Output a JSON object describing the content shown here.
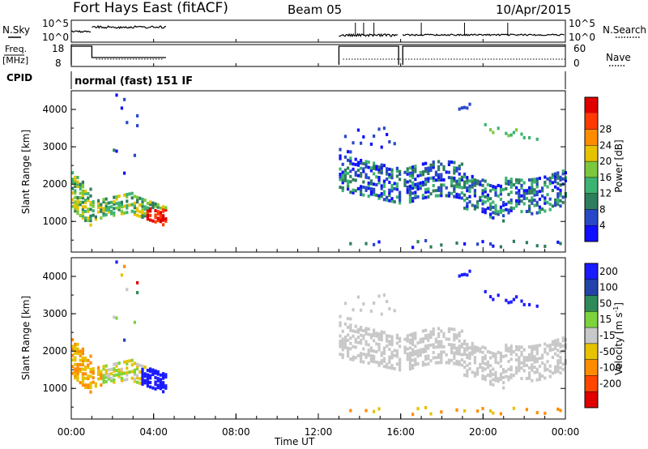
{
  "header": {
    "title": "Fort Hays East (fitACF)",
    "beam": "Beam 05",
    "date": "10/Apr/2015"
  },
  "ancillary": {
    "nsky_label": "N.Sky",
    "nsearch_label": "N.Search",
    "freq_label_line1": "Freq.",
    "freq_label_line2": "[MHz]",
    "nave_label": "Nave",
    "cpid_label": "CPID",
    "cpid_text": "normal (fast) 151 IF",
    "noise_ticks_left": [
      "10^5",
      "10^0"
    ],
    "noise_ticks_right": [
      "10^5",
      "10^0"
    ],
    "freq_ticks": [
      "18",
      "8"
    ],
    "nave_ticks": [
      "60",
      "0"
    ]
  },
  "chart_data": [
    {
      "type": "heatmap",
      "panel": "power",
      "ylabel": "Slant Range [km]",
      "yticks": [
        "1000",
        "2000",
        "3000",
        "4000"
      ],
      "ylim": [
        180,
        4500
      ],
      "xlim": [
        0,
        24
      ],
      "colorbar": {
        "label": "Power [dB]",
        "ticks": [
          "4",
          "8",
          "12",
          "16",
          "20",
          "24",
          "28"
        ],
        "colors": [
          "#1010ff",
          "#2848c8",
          "#2e7d5c",
          "#3cb371",
          "#7cc83c",
          "#e6c200",
          "#ff8c00",
          "#ff3a00",
          "#e00000"
        ]
      },
      "regions": [
        {
          "t0": 0.0,
          "t1": 4.6,
          "description_hidden": true,
          "r0": 800,
          "r1": 2600
        },
        {
          "t0": 13.0,
          "t1": 24.0,
          "r0": 1300,
          "r1": 4200
        }
      ]
    },
    {
      "type": "heatmap",
      "panel": "velocity",
      "ylabel": "Slant Range [km]",
      "yticks": [
        "1000",
        "2000",
        "3000",
        "4000"
      ],
      "ylim": [
        180,
        4500
      ],
      "xlim": [
        0,
        24
      ],
      "colorbar": {
        "label": "Velocity [m s",
        "label_sup": "-1",
        "label_end": "]",
        "ticks": [
          "200",
          "100",
          "50",
          "15",
          "-15",
          "-50",
          "-100",
          "-200"
        ],
        "colors": [
          "#1a1aff",
          "#2244aa",
          "#2e8b57",
          "#7cd33c",
          "#c8c8c8",
          "#e6c200",
          "#ff8c00",
          "#ff4500",
          "#e00000"
        ]
      }
    }
  ],
  "xaxis": {
    "label": "Time UT",
    "ticks": [
      "00:00",
      "04:00",
      "08:00",
      "12:00",
      "16:00",
      "20:00",
      "00:00"
    ]
  }
}
